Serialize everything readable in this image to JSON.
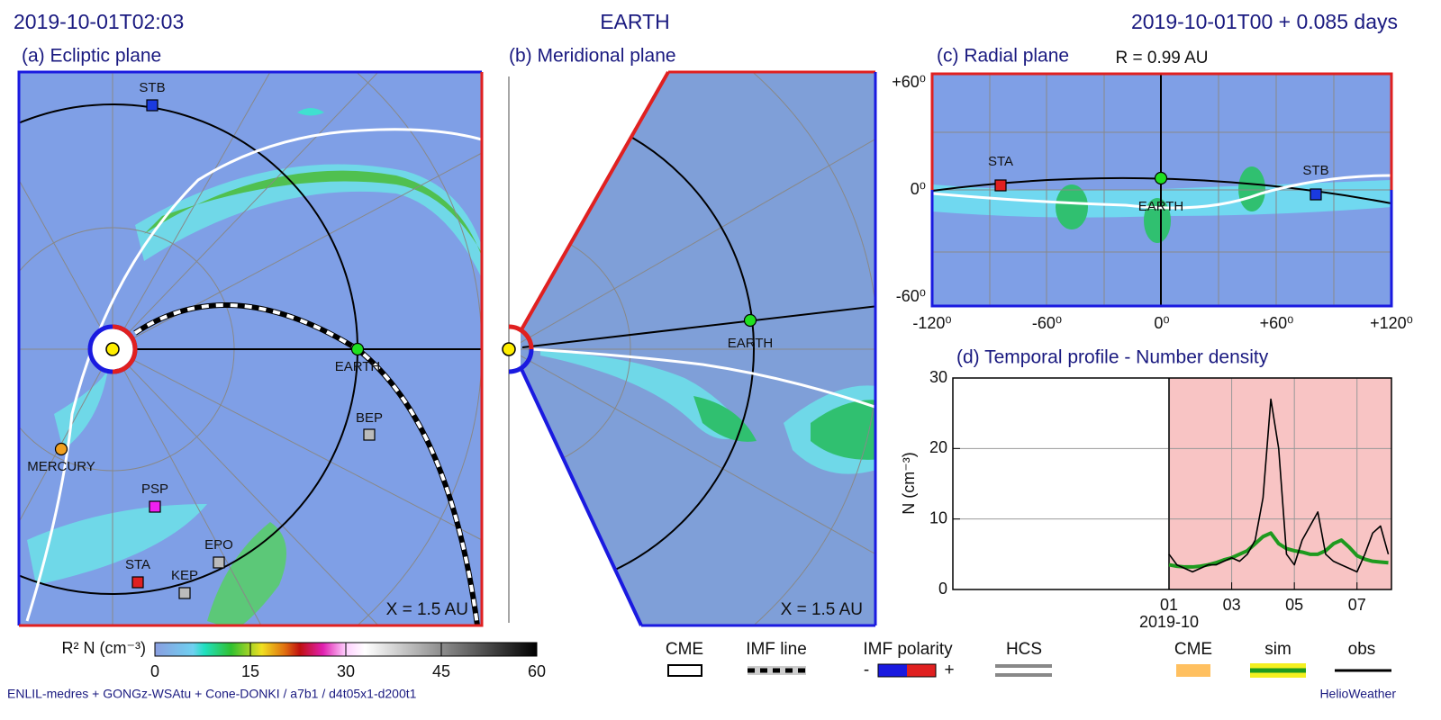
{
  "header": {
    "left": "2019-10-01T02:03",
    "center": "EARTH",
    "right": "2019-10-01T00 +  0.085 days"
  },
  "panels": {
    "a": {
      "title": "(a) Ecliptic plane",
      "distance": "X = 1.5 AU",
      "objects": [
        "STB",
        "EARTH",
        "MERCURY",
        "BEP",
        "PSP",
        "EPO",
        "STA",
        "KEP"
      ]
    },
    "b": {
      "title": "(b) Meridional plane",
      "distance": "X = 1.5 AU",
      "objects": [
        "EARTH"
      ]
    },
    "c": {
      "title": "(c) Radial plane",
      "radius": "R = 0.99 AU",
      "yticks": [
        "+60⁰",
        "0⁰",
        "-60⁰"
      ],
      "xticks": [
        "-120⁰",
        "-60⁰",
        "0⁰",
        "+60⁰",
        "+120⁰"
      ],
      "objects": [
        "STA",
        "EARTH",
        "STB"
      ]
    }
  },
  "chart_data": {
    "type": "line",
    "title": "(d) Temporal profile - Number density",
    "ylabel": "N (cm⁻³)",
    "x_label": "2019-10",
    "x": [
      1,
      1.25,
      1.5,
      1.75,
      2,
      2.25,
      2.5,
      2.75,
      3,
      3.25,
      3.5,
      3.75,
      4,
      4.25,
      4.5,
      4.75,
      5,
      5.25,
      5.5,
      5.75,
      6,
      6.25,
      6.5,
      6.75,
      7,
      7.25,
      7.5,
      7.75,
      8
    ],
    "series": [
      {
        "name": "sim",
        "color": "#1e9a1e",
        "values": [
          3.5,
          3.3,
          3.2,
          3.2,
          3.3,
          3.5,
          3.8,
          4.2,
          4.5,
          5,
          5.5,
          6.5,
          7.5,
          8,
          6.5,
          5.8,
          5.5,
          5.3,
          5,
          5,
          5.5,
          6.5,
          7,
          6,
          4.8,
          4.3,
          4,
          3.9,
          3.8
        ]
      },
      {
        "name": "obs",
        "color": "#000000",
        "values": [
          5,
          3.5,
          3,
          2.5,
          3,
          3.5,
          3.5,
          4,
          4.5,
          4,
          5,
          7,
          13,
          27,
          20,
          5,
          3.5,
          7,
          9,
          11,
          5,
          4,
          3.5,
          3,
          2.5,
          5,
          8,
          9,
          5
        ]
      }
    ],
    "xlim": [
      -5.9,
      8.1
    ],
    "xticks": [
      {
        "value": 1,
        "label": "01"
      },
      {
        "value": 3,
        "label": "03"
      },
      {
        "value": 5,
        "label": "05"
      },
      {
        "value": 7,
        "label": "07"
      }
    ],
    "ylim": [
      0,
      30
    ],
    "yticks": [
      0,
      10,
      20,
      30
    ],
    "shaded_xrange": [
      1,
      8.1
    ],
    "grid": true
  },
  "colorbar": {
    "label": "R² N (cm⁻³)",
    "lim": [
      0,
      60
    ],
    "ticks": [
      0,
      15,
      30,
      45,
      60
    ]
  },
  "legend": {
    "cme": "CME",
    "imf_line": "IMF line",
    "imf_polarity": "IMF polarity",
    "minus": "-",
    "plus": "+",
    "hcs": "HCS",
    "cme2": "CME",
    "sim": "sim",
    "obs": "obs"
  },
  "footer": {
    "left": "ENLIL-medres + GONGz-WSAtu + Cone-DONKI / a7b1 / d4t05x1-d200t1",
    "right": "HelioWeather"
  }
}
